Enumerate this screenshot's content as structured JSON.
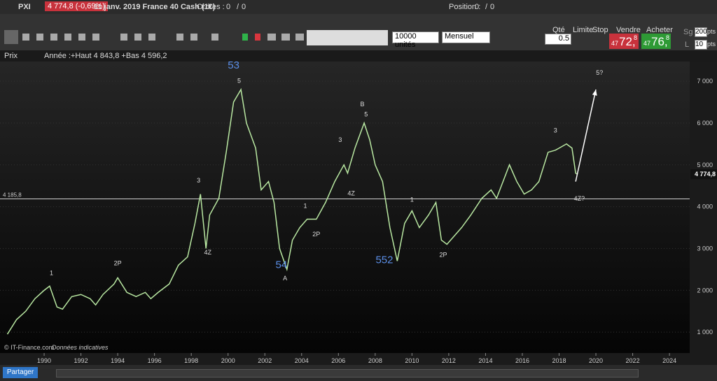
{
  "header": {
    "symbol": "PXI",
    "quote": "4 774,8 (-0,69%)",
    "instrument": "11 janv. 2019 France 40 Cash (1€)",
    "orders_label": "Ordres :",
    "orders": "0",
    "orders_sep": "/",
    "orders2": "0",
    "position_label": "Position :",
    "position": "0",
    "position_sep": "/",
    "position2": "0"
  },
  "toolbar": {
    "units": "10000 unités",
    "period": "Mensuel",
    "qty_label": "Qté",
    "qty": "0.5",
    "limit": "Limite",
    "stop": "Stop",
    "sell_label": "Vendre",
    "sell_small": "47",
    "sell_big": "72,",
    "sell_sup": "8",
    "buy_label": "Acheter",
    "buy_small": "47",
    "buy_big": "76,",
    "buy_sup": "8",
    "sg": "Sg",
    "sg_value": "200",
    "sg_unit": "pts",
    "l": "L",
    "l_value": "10",
    "l_unit": "pts"
  },
  "info": {
    "price": "Prix",
    "stats": "Année :+Haut 4 843,8 +Bas 4 596,2"
  },
  "footer": {
    "copyright": "© IT-Finance.com",
    "note": "Données indicatives",
    "share": "Partager"
  },
  "chart_data": {
    "type": "line",
    "series": [
      {
        "name": "PXI",
        "color": "#b9e8a2",
        "x": [
          1988.0,
          1988.5,
          1989.0,
          1989.5,
          1990.0,
          1990.3,
          1990.7,
          1991.0,
          1991.5,
          1992.0,
          1992.5,
          1992.8,
          1993.2,
          1993.8,
          1994.0,
          1994.5,
          1995.0,
          1995.5,
          1995.8,
          1996.2,
          1996.8,
          1997.3,
          1997.8,
          1998.2,
          1998.5,
          1998.8,
          1999.0,
          1999.5,
          1999.9,
          2000.3,
          2000.7,
          2001.0,
          2001.5,
          2001.8,
          2002.2,
          2002.5,
          2002.8,
          2003.2,
          2003.5,
          2003.9,
          2004.3,
          2004.8,
          2005.3,
          2005.8,
          2006.3,
          2006.5,
          2006.9,
          2007.4,
          2007.7,
          2008.0,
          2008.4,
          2008.8,
          2009.2,
          2009.6,
          2010.0,
          2010.4,
          2010.9,
          2011.3,
          2011.6,
          2011.9,
          2012.3,
          2012.7,
          2013.2,
          2013.8,
          2014.3,
          2014.6,
          2015.3,
          2015.7,
          2016.1,
          2016.5,
          2016.9,
          2017.4,
          2017.8,
          2018.0,
          2018.4,
          2018.7,
          2018.9,
          2019.0
        ],
        "values": [
          950,
          1300,
          1500,
          1800,
          2000,
          2100,
          1600,
          1550,
          1850,
          1900,
          1800,
          1650,
          1900,
          2150,
          2300,
          1950,
          1850,
          1950,
          1800,
          1950,
          2150,
          2600,
          2800,
          3600,
          4300,
          3000,
          3800,
          4200,
          5300,
          6500,
          6800,
          6000,
          5400,
          4400,
          4600,
          4100,
          3000,
          2500,
          3200,
          3500,
          3700,
          3700,
          4100,
          4600,
          5000,
          4800,
          5400,
          6000,
          5600,
          5000,
          4600,
          3500,
          2700,
          3600,
          3900,
          3500,
          3800,
          4100,
          3200,
          3100,
          3300,
          3500,
          3800,
          4200,
          4400,
          4200,
          5000,
          4600,
          4300,
          4400,
          4600,
          5300,
          5350,
          5400,
          5500,
          5400,
          4800,
          4775
        ]
      }
    ],
    "xlim": [
      1987.6,
      2025.1
    ],
    "ylim": [
      500,
      7470
    ],
    "xticks": [
      1990,
      1992,
      1994,
      1996,
      1998,
      2000,
      2002,
      2004,
      2006,
      2008,
      2010,
      2012,
      2014,
      2016,
      2018,
      2020,
      2022,
      2024
    ],
    "yticks": [
      {
        "value": 1000,
        "label": "1 000"
      },
      {
        "value": 2000,
        "label": "2 000"
      },
      {
        "value": 3000,
        "label": "3 000"
      },
      {
        "value": 4000,
        "label": "4 000"
      },
      {
        "value": 5000,
        "label": "5 000"
      },
      {
        "value": 6000,
        "label": "6 000"
      },
      {
        "value": 7000,
        "label": "7 000"
      }
    ],
    "grid": true,
    "hline": {
      "value": 4185.8,
      "label": "4 185,8"
    },
    "last": {
      "value": 4774.8,
      "label": "4 774,8"
    },
    "arrow": {
      "x": [
        2018.9,
        2020.0
      ],
      "y": [
        4600,
        6800
      ]
    },
    "annotations": [
      {
        "text": "53",
        "x": 2000.3,
        "y": 7300,
        "color": "#5b8fe8"
      },
      {
        "text": "5",
        "x": 2000.6,
        "y": 6960,
        "color": "#dddddd"
      },
      {
        "text": "3",
        "x": 1998.4,
        "y": 4577,
        "color": "#dddddd"
      },
      {
        "text": "4Z",
        "x": 1998.9,
        "y": 2860,
        "color": "#dddddd"
      },
      {
        "text": "54",
        "x": 2002.9,
        "y": 2530,
        "color": "#5b8fe8"
      },
      {
        "text": "A",
        "x": 2003.1,
        "y": 2240,
        "color": "#dddddd"
      },
      {
        "text": "1",
        "x": 2004.2,
        "y": 3970,
        "color": "#dddddd"
      },
      {
        "text": "2P",
        "x": 2004.8,
        "y": 3290,
        "color": "#dddddd"
      },
      {
        "text": "3",
        "x": 2006.1,
        "y": 5550,
        "color": "#dddddd"
      },
      {
        "text": "4Z",
        "x": 2006.7,
        "y": 4270,
        "color": "#dddddd"
      },
      {
        "text": "B",
        "x": 2007.3,
        "y": 6400,
        "color": "#dddddd"
      },
      {
        "text": "5",
        "x": 2007.5,
        "y": 6160,
        "color": "#dddddd"
      },
      {
        "text": "552",
        "x": 2008.5,
        "y": 2650,
        "color": "#5b8fe8"
      },
      {
        "text": "1",
        "x": 2010.0,
        "y": 4120,
        "color": "#dddddd"
      },
      {
        "text": "2P",
        "x": 2011.7,
        "y": 2800,
        "color": "#dddddd"
      },
      {
        "text": "3",
        "x": 2017.8,
        "y": 5770,
        "color": "#dddddd"
      },
      {
        "text": "4Z?",
        "x": 2019.1,
        "y": 4140,
        "color": "#dddddd"
      },
      {
        "text": "5?",
        "x": 2020.2,
        "y": 7150,
        "color": "#dddddd"
      },
      {
        "text": "1",
        "x": 1990.4,
        "y": 2360,
        "color": "#dddddd"
      },
      {
        "text": "2P",
        "x": 1994.0,
        "y": 2600,
        "color": "#dddddd"
      }
    ]
  }
}
